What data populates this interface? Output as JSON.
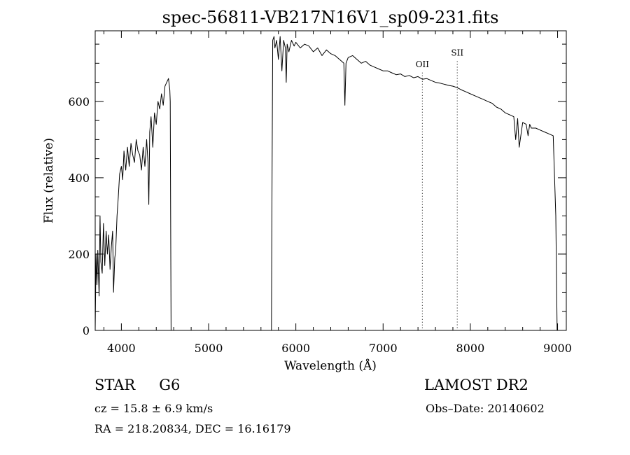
{
  "chart_data": {
    "type": "line",
    "title": "spec-56811-VB217N16V1_sp09-231.fits",
    "xlabel": "Wavelength (Å)",
    "ylabel": "Flux (relative)",
    "xlim": [
      3700,
      9100
    ],
    "ylim": [
      0,
      785
    ],
    "xticks": [
      4000,
      5000,
      6000,
      7000,
      8000,
      9000
    ],
    "xtick_labels": [
      "4000",
      "5000",
      "6000",
      "7000",
      "8000",
      "9000"
    ],
    "yticks": [
      0,
      200,
      400,
      600
    ],
    "ytick_labels": [
      "0",
      "200",
      "400",
      "600"
    ],
    "grid": false,
    "line_color": "#000000",
    "series": [
      {
        "x": [
          3700,
          3710,
          3720,
          3730,
          3745,
          3755,
          3765,
          3780,
          3795,
          3810,
          3825,
          3840,
          3855,
          3870,
          3885,
          3900,
          3910,
          3925,
          3935,
          3950,
          3965,
          3980,
          4000,
          4015,
          4030,
          4050,
          4070,
          4090,
          4110,
          4130,
          4150,
          4170,
          4190,
          4210,
          4230,
          4250,
          4270,
          4290,
          4305,
          4315,
          4325,
          4340,
          4360,
          4380,
          4400,
          4420,
          4440,
          4460,
          4480,
          4500,
          4520,
          4540,
          4555,
          4560,
          4565,
          4570,
          5720,
          5725,
          5735,
          5750,
          5760,
          5780,
          5800,
          5820,
          5840,
          5860,
          5880,
          5890,
          5900,
          5920,
          5950,
          5980,
          6000,
          6050,
          6100,
          6150,
          6200,
          6250,
          6300,
          6350,
          6400,
          6450,
          6500,
          6550,
          6562,
          6575,
          6600,
          6650,
          6700,
          6750,
          6800,
          6850,
          6900,
          6950,
          7000,
          7050,
          7100,
          7150,
          7200,
          7250,
          7300,
          7350,
          7400,
          7450,
          7500,
          7550,
          7600,
          7650,
          7700,
          7750,
          7800,
          7850,
          7900,
          7950,
          8000,
          8050,
          8100,
          8150,
          8200,
          8250,
          8300,
          8350,
          8400,
          8450,
          8498,
          8520,
          8542,
          8560,
          8600,
          8640,
          8662,
          8680,
          8700,
          8750,
          8800,
          8850,
          8900,
          8950,
          8980,
          8995,
          9000
        ],
        "values": [
          0,
          200,
          120,
          210,
          90,
          300,
          180,
          150,
          280,
          170,
          260,
          200,
          250,
          160,
          220,
          260,
          100,
          190,
          210,
          300,
          350,
          410,
          430,
          395,
          470,
          420,
          480,
          430,
          490,
          460,
          440,
          500,
          470,
          460,
          420,
          480,
          430,
          500,
          440,
          330,
          520,
          560,
          480,
          570,
          540,
          600,
          580,
          620,
          590,
          640,
          650,
          660,
          630,
          600,
          300,
          0,
          0,
          300,
          760,
          770,
          740,
          760,
          710,
          770,
          680,
          760,
          740,
          650,
          750,
          730,
          760,
          745,
          755,
          740,
          750,
          745,
          730,
          740,
          720,
          735,
          725,
          720,
          710,
          700,
          590,
          700,
          715,
          720,
          710,
          700,
          705,
          695,
          690,
          685,
          680,
          680,
          675,
          670,
          672,
          665,
          668,
          662,
          665,
          658,
          660,
          655,
          650,
          648,
          645,
          642,
          640,
          636,
          630,
          625,
          620,
          615,
          610,
          605,
          600,
          595,
          585,
          580,
          570,
          565,
          560,
          500,
          555,
          480,
          545,
          540,
          510,
          540,
          530,
          530,
          525,
          520,
          515,
          510,
          300,
          0,
          0
        ]
      }
    ],
    "annotations": [
      {
        "label": "OII",
        "x": 7450,
        "y_label": 690
      },
      {
        "label": "SII",
        "x": 7850,
        "y_label": 720
      }
    ]
  },
  "info": {
    "class": "STAR",
    "subclass": "G6",
    "release": "LAMOST DR2",
    "cz": "cz = 15.8 ± 6.9 km/s",
    "obs_date": "Obs–Date: 20140602",
    "radec": "RA = 218.20834, DEC =  16.16179"
  }
}
